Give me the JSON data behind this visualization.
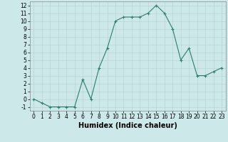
{
  "title": "",
  "xlabel": "Humidex (Indice chaleur)",
  "x": [
    0,
    1,
    2,
    3,
    4,
    5,
    6,
    7,
    8,
    9,
    10,
    11,
    12,
    13,
    14,
    15,
    16,
    17,
    18,
    19,
    20,
    21,
    22,
    23
  ],
  "y": [
    0,
    -0.5,
    -1,
    -1,
    -1,
    -1,
    2.5,
    0,
    4,
    6.5,
    10,
    10.5,
    10.5,
    10.5,
    11,
    12,
    11,
    9,
    5,
    6.5,
    3,
    3,
    3.5,
    4
  ],
  "xlim": [
    -0.5,
    23.5
  ],
  "ylim": [
    -1.5,
    12.5
  ],
  "xticks": [
    0,
    1,
    2,
    3,
    4,
    5,
    6,
    7,
    8,
    9,
    10,
    11,
    12,
    13,
    14,
    15,
    16,
    17,
    18,
    19,
    20,
    21,
    22,
    23
  ],
  "yticks": [
    -1,
    0,
    1,
    2,
    3,
    4,
    5,
    6,
    7,
    8,
    9,
    10,
    11,
    12
  ],
  "line_color": "#2e7d6e",
  "marker_color": "#2e7d6e",
  "bg_color": "#cce8e8",
  "grid_color": "#b8d4d4",
  "axes_bg": "#cce8e8",
  "xlabel_fontsize": 7,
  "tick_fontsize": 5.5
}
